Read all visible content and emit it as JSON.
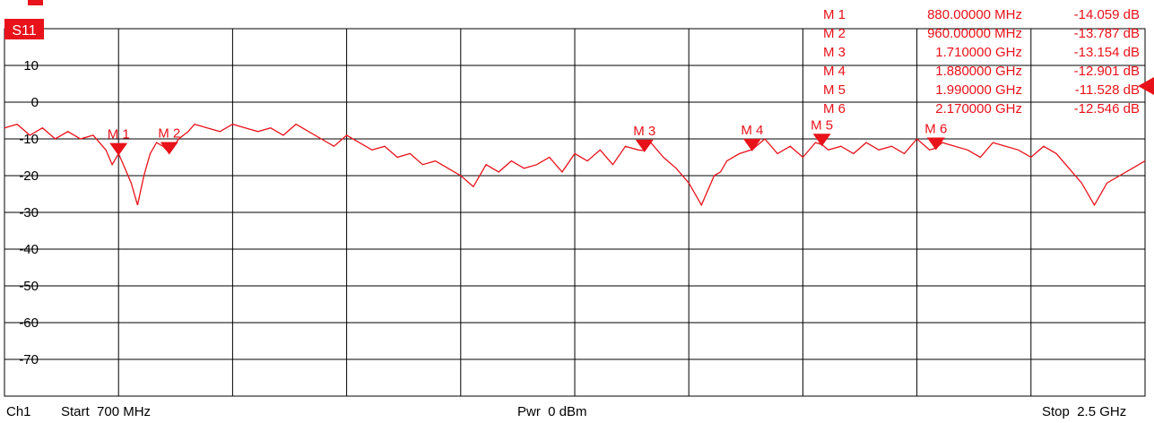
{
  "trace": {
    "label": "S11",
    "color": "#e8121a"
  },
  "footer": {
    "channel": "Ch1",
    "start": "Start  700 MHz",
    "power": "Pwr  0 dBm",
    "stop": "Stop  2.5 GHz"
  },
  "markers": [
    {
      "name": "M 1",
      "freq": "880.00000 MHz",
      "value": "-14.059 dB"
    },
    {
      "name": "M 2",
      "freq": "960.00000 MHz",
      "value": "-13.787 dB"
    },
    {
      "name": "M 3",
      "freq": "1.710000 GHz",
      "value": "-13.154 dB"
    },
    {
      "name": "M 4",
      "freq": "1.880000 GHz",
      "value": "-12.901 dB"
    },
    {
      "name": "M 5",
      "freq": "1.990000 GHz",
      "value": "-11.528 dB"
    },
    {
      "name": "M 6",
      "freq": "2.170000 GHz",
      "value": "-12.546 dB"
    }
  ],
  "chart_data": {
    "type": "line",
    "title": "",
    "xlabel": "",
    "ylabel": "",
    "xlim": [
      700,
      2500
    ],
    "x_unit": "MHz",
    "ylim": [
      -80,
      20
    ],
    "y_ticks": [
      10,
      0,
      -10,
      -20,
      -30,
      -40,
      -50,
      -60,
      -70
    ],
    "y_tick_labels": [
      "10",
      "0",
      "-10",
      "-20",
      "-30",
      "-40",
      "-50",
      "-60",
      "-70"
    ],
    "grid": true,
    "reference_level": 0,
    "series": [
      {
        "name": "S11",
        "x": [
          700,
          720,
          740,
          760,
          780,
          800,
          820,
          840,
          860,
          870,
          880,
          890,
          900,
          910,
          920,
          930,
          940,
          950,
          960,
          975,
          990,
          1000,
          1020,
          1040,
          1060,
          1080,
          1100,
          1120,
          1140,
          1160,
          1180,
          1200,
          1220,
          1240,
          1260,
          1280,
          1300,
          1320,
          1340,
          1360,
          1380,
          1400,
          1420,
          1440,
          1460,
          1480,
          1500,
          1520,
          1540,
          1560,
          1580,
          1600,
          1620,
          1640,
          1660,
          1680,
          1700,
          1710,
          1720,
          1740,
          1760,
          1780,
          1800,
          1820,
          1830,
          1840,
          1860,
          1880,
          1900,
          1920,
          1940,
          1960,
          1980,
          1990,
          2000,
          2020,
          2040,
          2060,
          2080,
          2100,
          2120,
          2140,
          2160,
          2170,
          2180,
          2200,
          2220,
          2240,
          2260,
          2280,
          2300,
          2320,
          2340,
          2360,
          2380,
          2400,
          2420,
          2440,
          2460,
          2480,
          2500
        ],
        "y": [
          -7,
          -6,
          -9,
          -7,
          -10,
          -8,
          -10,
          -9,
          -13,
          -17,
          -14,
          -18,
          -22,
          -28,
          -20,
          -14,
          -11,
          -12,
          -13.8,
          -10,
          -8,
          -6,
          -7,
          -8,
          -6,
          -7,
          -8,
          -7,
          -9,
          -6,
          -8,
          -10,
          -12,
          -9,
          -11,
          -13,
          -12,
          -15,
          -14,
          -17,
          -16,
          -18,
          -20,
          -23,
          -17,
          -19,
          -16,
          -18,
          -17,
          -15,
          -19,
          -14,
          -16,
          -13,
          -17,
          -12,
          -13,
          -13.2,
          -11,
          -15,
          -18,
          -22,
          -28,
          -20,
          -19,
          -16,
          -14,
          -12.9,
          -10,
          -14,
          -12,
          -15,
          -11,
          -11.5,
          -13,
          -12,
          -14,
          -11,
          -13,
          -12,
          -14,
          -10,
          -13,
          -12.5,
          -11,
          -12,
          -13,
          -15,
          -11,
          -12,
          -13,
          -15,
          -12,
          -14,
          -18,
          -22,
          -28,
          -22,
          -20,
          -18,
          -16
        ]
      }
    ],
    "marker_points": [
      {
        "label": "M 1",
        "x": 880,
        "y": -14.059
      },
      {
        "label": "M 2",
        "x": 960,
        "y": -13.787
      },
      {
        "label": "M 3",
        "x": 1710,
        "y": -13.154
      },
      {
        "label": "M 4",
        "x": 1880,
        "y": -12.901
      },
      {
        "label": "M 5",
        "x": 1990,
        "y": -11.528
      },
      {
        "label": "M 6",
        "x": 2170,
        "y": -12.546
      }
    ]
  }
}
